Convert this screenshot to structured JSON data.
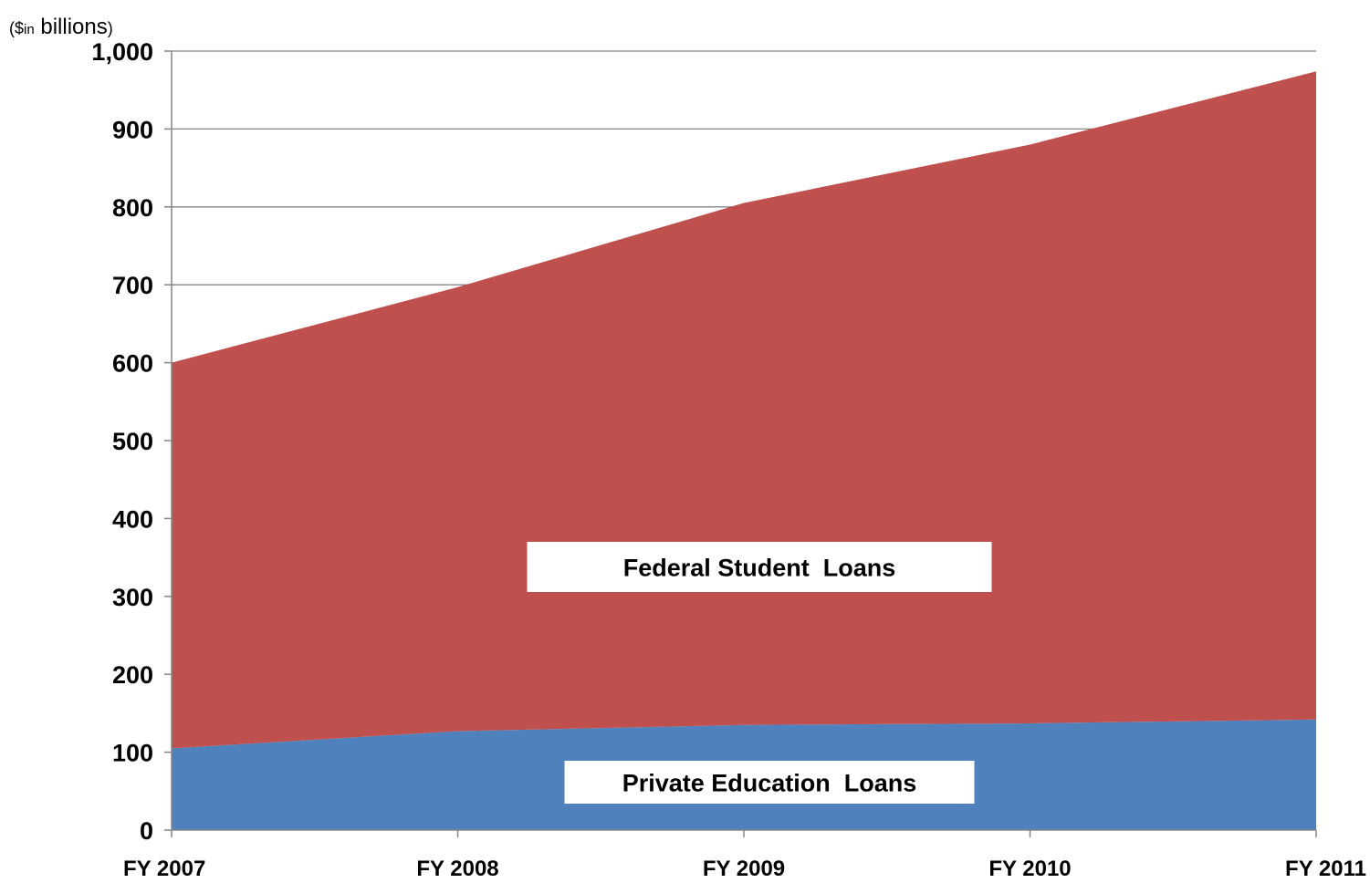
{
  "chart_data": {
    "type": "area",
    "stacked": true,
    "unit_label": {
      "prefix": "($",
      "small": "in",
      "main": " billions",
      "suffix": ")"
    },
    "categories": [
      "FY 2007",
      "FY 2008",
      "FY 2009",
      "FY 2010",
      "FY 2011"
    ],
    "series": [
      {
        "name": "Private Education  Loans",
        "values": [
          105,
          127,
          135,
          137,
          142
        ],
        "color": "#4f81bd"
      },
      {
        "name": "Federal Student  Loans",
        "values": [
          495,
          570,
          670,
          743,
          832
        ],
        "color": "#c0504d"
      }
    ],
    "ylim": [
      0,
      1000
    ],
    "yticks": [
      0,
      100,
      200,
      300,
      400,
      500,
      600,
      700,
      800,
      900,
      1000
    ],
    "ytick_labels": [
      "0",
      "100",
      "200",
      "300",
      "400",
      "500",
      "600",
      "700",
      "800",
      "900",
      "1,000"
    ],
    "grid": true,
    "legend": "inline labels in plot area"
  }
}
